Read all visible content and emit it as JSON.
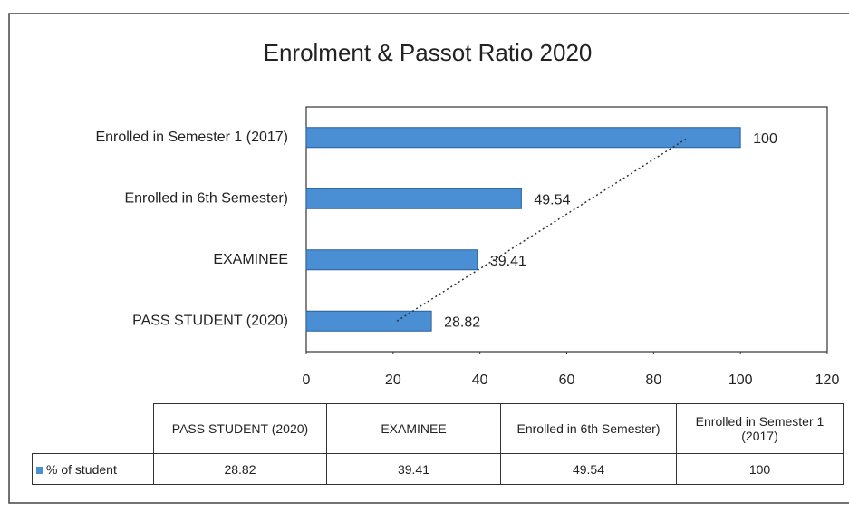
{
  "chart_data": {
    "type": "bar",
    "orientation": "horizontal",
    "title": "Enrolment & Passot Ratio 2020",
    "categories": [
      "PASS STUDENT (2020)",
      "EXAMINEE",
      "Enrolled in 6th Semester)",
      "Enrolled in Semester 1 (2017)"
    ],
    "series": [
      {
        "name": "% of student",
        "color": "#4a8fd4",
        "values": [
          28.82,
          39.41,
          49.54,
          100
        ]
      }
    ],
    "xlim": [
      0,
      120
    ],
    "xticks": [
      0,
      20,
      40,
      60,
      80,
      100,
      120
    ],
    "trendline": "linear",
    "data_table": true
  }
}
